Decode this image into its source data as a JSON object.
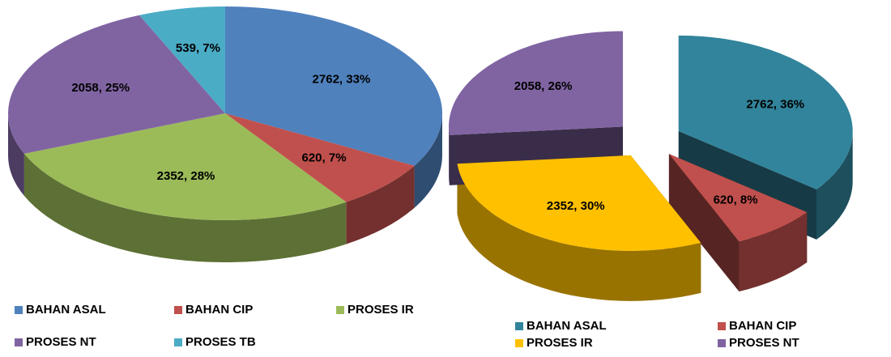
{
  "chart_data": [
    {
      "type": "pie3d",
      "categories": [
        "BAHAN ASAL",
        "BAHAN CIP",
        "PROSES IR",
        "PROSES NT",
        "PROSES TB"
      ],
      "values": [
        2762,
        620,
        2352,
        2058,
        539
      ],
      "value_labels": [
        "2762, 33%",
        "620, 7%",
        "2352, 28%",
        "2058, 25%",
        "539, 7%"
      ],
      "colors": [
        "#4f81bd",
        "#c0504d",
        "#9bbb59",
        "#8064a2",
        "#4bacc6"
      ],
      "legend": "bottom"
    },
    {
      "type": "pie3d",
      "categories": [
        "BAHAN ASAL",
        "BAHAN CIP",
        "PROSES IR",
        "PROSES NT"
      ],
      "values": [
        2762,
        620,
        2352,
        2058
      ],
      "value_labels": [
        "2762, 36%",
        "620, 8%",
        "2352, 30%",
        "2058, 26%"
      ],
      "colors": [
        "#31849b",
        "#c0504d",
        "#ffc000",
        "#8064a2"
      ],
      "legend": "bottom",
      "exploded": true
    }
  ]
}
